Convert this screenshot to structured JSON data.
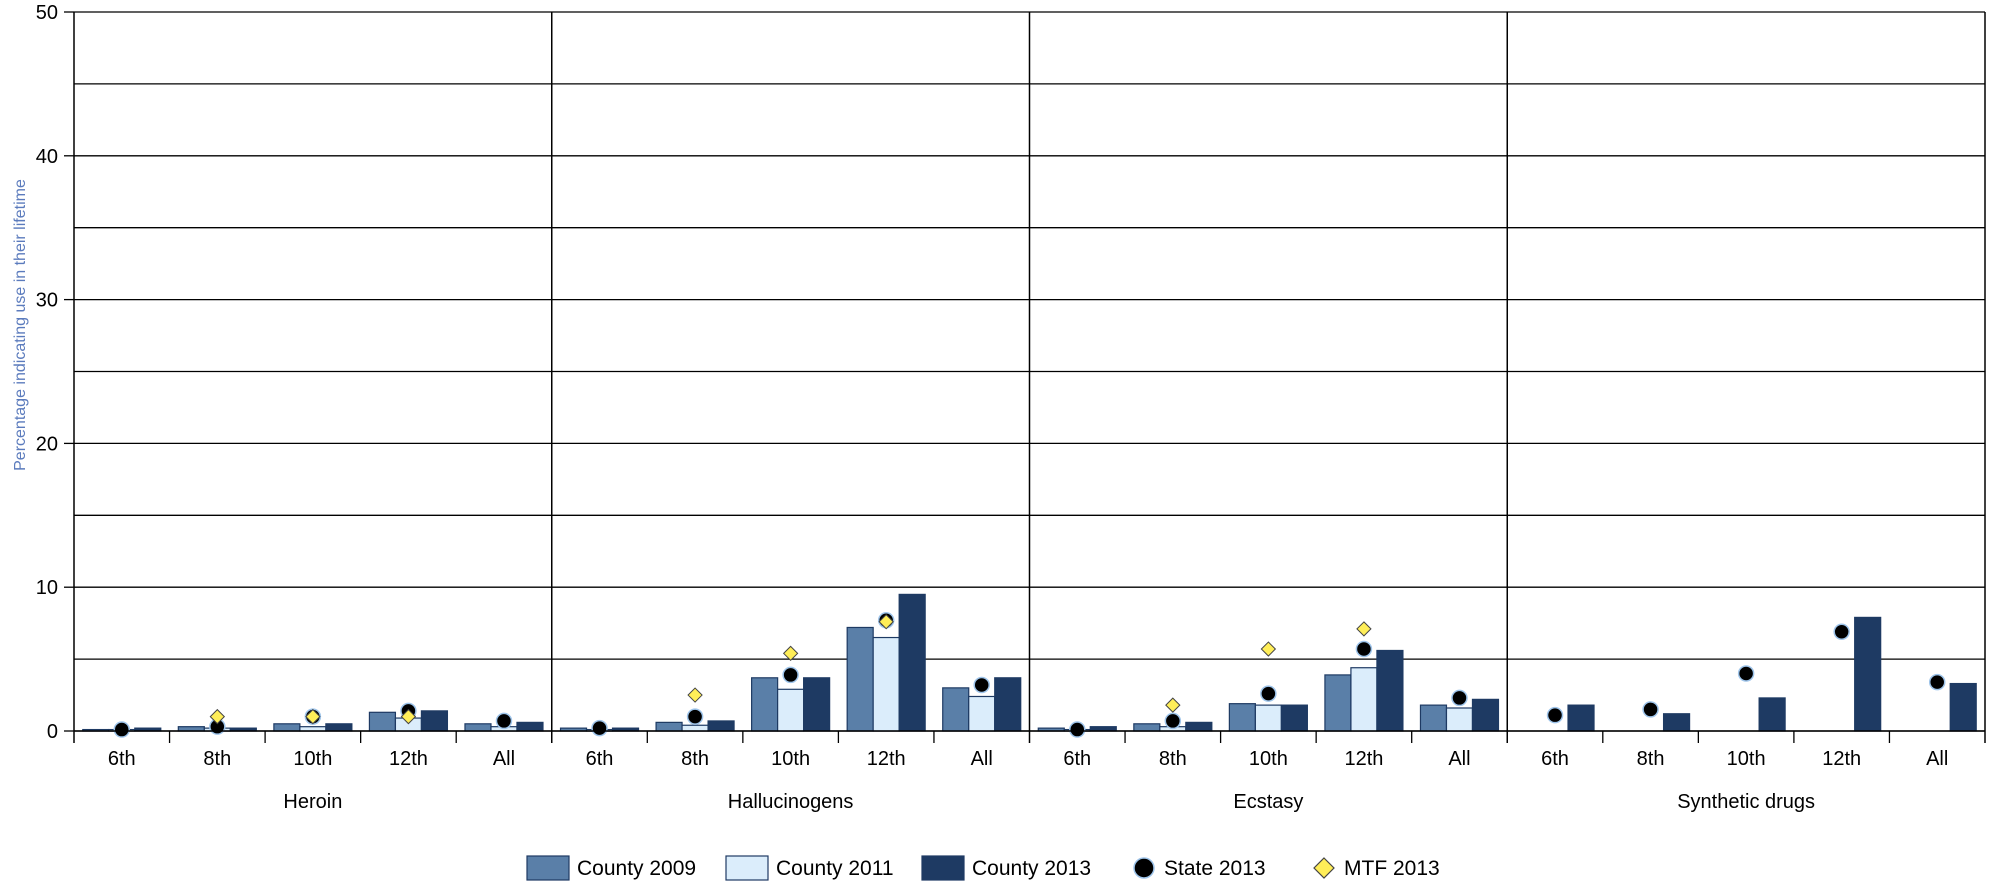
{
  "chart_data": {
    "type": "bar",
    "ylabel": "Percentage indicating use in their lifetime",
    "ylim": [
      0,
      50
    ],
    "y_ticks": [
      "0",
      "10",
      "20",
      "30",
      "40",
      "50"
    ],
    "grid": true,
    "legend_position": "bottom",
    "colors": {
      "County 2009": "#5a7fa8",
      "County 2011": "#dbedfb",
      "County 2013": "#1e3a63",
      "State 2013": "#000000",
      "MTF 2013": "#ffee58",
      "ylabel": "#5b7bbd"
    },
    "series": [
      {
        "name": "County 2009",
        "kind": "bar"
      },
      {
        "name": "County 2011",
        "kind": "bar"
      },
      {
        "name": "County 2013",
        "kind": "bar"
      },
      {
        "name": "State 2013",
        "kind": "marker-circle"
      },
      {
        "name": "MTF 2013",
        "kind": "marker-diamond"
      }
    ],
    "groups": [
      {
        "name": "Heroin",
        "categories": [
          {
            "label": "6th",
            "County 2009": 0.1,
            "County 2011": 0.1,
            "County 2013": 0.2,
            "State 2013": 0.1,
            "MTF 2013": null
          },
          {
            "label": "8th",
            "County 2009": 0.3,
            "County 2011": 0.2,
            "County 2013": 0.2,
            "State 2013": 0.3,
            "MTF 2013": 1.0
          },
          {
            "label": "10th",
            "County 2009": 0.5,
            "County 2011": 0.3,
            "County 2013": 0.5,
            "State 2013": 1.0,
            "MTF 2013": 1.0
          },
          {
            "label": "12th",
            "County 2009": 1.3,
            "County 2011": 0.9,
            "County 2013": 1.4,
            "State 2013": 1.4,
            "MTF 2013": 1.0
          },
          {
            "label": "All",
            "County 2009": 0.5,
            "County 2011": 0.3,
            "County 2013": 0.6,
            "State 2013": 0.7,
            "MTF 2013": null
          }
        ]
      },
      {
        "name": "Hallucinogens",
        "categories": [
          {
            "label": "6th",
            "County 2009": 0.2,
            "County 2011": 0.1,
            "County 2013": 0.2,
            "State 2013": 0.2,
            "MTF 2013": null
          },
          {
            "label": "8th",
            "County 2009": 0.6,
            "County 2011": 0.4,
            "County 2013": 0.7,
            "State 2013": 1.0,
            "MTF 2013": 2.5
          },
          {
            "label": "10th",
            "County 2009": 3.7,
            "County 2011": 2.9,
            "County 2013": 3.7,
            "State 2013": 3.9,
            "MTF 2013": 5.4
          },
          {
            "label": "12th",
            "County 2009": 7.2,
            "County 2011": 6.5,
            "County 2013": 9.5,
            "State 2013": 7.7,
            "MTF 2013": 7.6
          },
          {
            "label": "All",
            "County 2009": 3.0,
            "County 2011": 2.4,
            "County 2013": 3.7,
            "State 2013": 3.2,
            "MTF 2013": null
          }
        ]
      },
      {
        "name": "Ecstasy",
        "categories": [
          {
            "label": "6th",
            "County 2009": 0.2,
            "County 2011": 0.1,
            "County 2013": 0.3,
            "State 2013": 0.1,
            "MTF 2013": null
          },
          {
            "label": "8th",
            "County 2009": 0.5,
            "County 2011": 0.3,
            "County 2013": 0.6,
            "State 2013": 0.7,
            "MTF 2013": 1.8
          },
          {
            "label": "10th",
            "County 2009": 1.9,
            "County 2011": 1.8,
            "County 2013": 1.8,
            "State 2013": 2.6,
            "MTF 2013": 5.7
          },
          {
            "label": "12th",
            "County 2009": 3.9,
            "County 2011": 4.4,
            "County 2013": 5.6,
            "State 2013": 5.7,
            "MTF 2013": 7.1
          },
          {
            "label": "All",
            "County 2009": 1.8,
            "County 2011": 1.6,
            "County 2013": 2.2,
            "State 2013": 2.3,
            "MTF 2013": null
          }
        ]
      },
      {
        "name": "Synthetic drugs",
        "categories": [
          {
            "label": "6th",
            "County 2009": null,
            "County 2011": null,
            "County 2013": 1.8,
            "State 2013": 1.1,
            "MTF 2013": null
          },
          {
            "label": "8th",
            "County 2009": null,
            "County 2011": null,
            "County 2013": 1.2,
            "State 2013": 1.5,
            "MTF 2013": null
          },
          {
            "label": "10th",
            "County 2009": null,
            "County 2011": null,
            "County 2013": 2.3,
            "State 2013": 4.0,
            "MTF 2013": null
          },
          {
            "label": "12th",
            "County 2009": null,
            "County 2011": null,
            "County 2013": 7.9,
            "State 2013": 6.9,
            "MTF 2013": null
          },
          {
            "label": "All",
            "County 2009": null,
            "County 2011": null,
            "County 2013": 3.3,
            "State 2013": 3.4,
            "MTF 2013": null
          }
        ]
      }
    ]
  }
}
